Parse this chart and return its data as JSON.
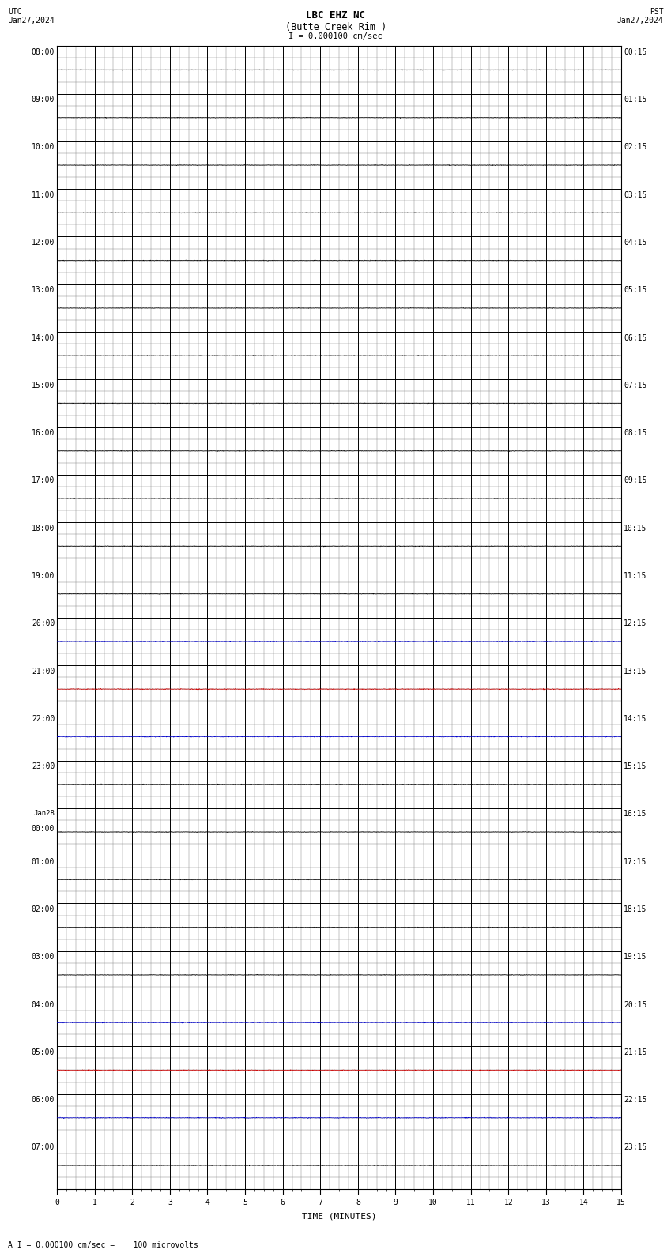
{
  "title_line1": "LBC EHZ NC",
  "title_line2": "(Butte Creek Rim )",
  "scale_label": "I = 0.000100 cm/sec",
  "left_label_top": "UTC",
  "left_label_date": "Jan27,2024",
  "right_label_top": "PST",
  "right_label_date": "Jan27,2024",
  "bottom_label": "TIME (MINUTES)",
  "caption": "A I = 0.000100 cm/sec =    100 microvolts",
  "utc_labels": [
    "08:00",
    "09:00",
    "10:00",
    "11:00",
    "12:00",
    "13:00",
    "14:00",
    "15:00",
    "16:00",
    "17:00",
    "18:00",
    "19:00",
    "20:00",
    "21:00",
    "22:00",
    "23:00",
    "Jan28\n00:00",
    "01:00",
    "02:00",
    "03:00",
    "04:00",
    "05:00",
    "06:00",
    "07:00"
  ],
  "pst_labels": [
    "00:15",
    "01:15",
    "02:15",
    "03:15",
    "04:15",
    "05:15",
    "06:15",
    "07:15",
    "08:15",
    "09:15",
    "10:15",
    "11:15",
    "12:15",
    "13:15",
    "14:15",
    "15:15",
    "16:15",
    "17:15",
    "18:15",
    "19:15",
    "20:15",
    "21:15",
    "22:15",
    "23:15"
  ],
  "n_rows": 24,
  "x_min": 0,
  "x_max": 15,
  "x_major_ticks": [
    0,
    1,
    2,
    3,
    4,
    5,
    6,
    7,
    8,
    9,
    10,
    11,
    12,
    13,
    14,
    15
  ],
  "bg_color": "#ffffff",
  "grid_color_major": "#000000",
  "grid_color_minor": "#888888",
  "trace_color": "#000000",
  "font_family": "monospace",
  "title_fontsize": 9,
  "tick_fontsize": 7,
  "caption_fontsize": 7,
  "fig_width": 8.5,
  "fig_height": 16.13
}
